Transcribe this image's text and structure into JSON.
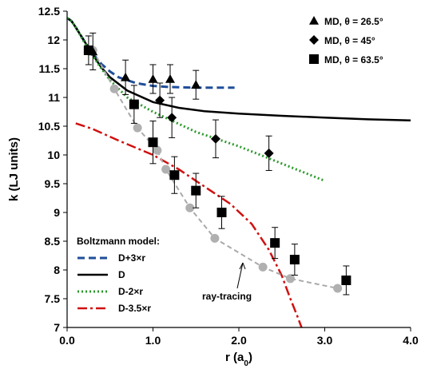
{
  "chart_data": {
    "type": "scatter",
    "xlabel": "r (a",
    "xlabel_sub": "0",
    "xlabel_end": ")",
    "ylabel": "k (LJ units)",
    "xlim": [
      0.0,
      4.0
    ],
    "ylim": [
      7,
      12.5
    ],
    "x_ticks": [
      "0.0",
      "1.0",
      "2.0",
      "3.0",
      "4.0"
    ],
    "y_ticks": [
      "7",
      "7.5",
      "8",
      "8.5",
      "9",
      "9.5",
      "10",
      "10.5",
      "11",
      "11.5",
      "12",
      "12.5"
    ],
    "x_tick_values": [
      0,
      1,
      2,
      3,
      4
    ],
    "y_tick_values": [
      7,
      7.5,
      8,
      8.5,
      9,
      9.5,
      10,
      10.5,
      11,
      11.5,
      12,
      12.5
    ],
    "legend_top": [
      {
        "label": "MD, θ = 26.5°",
        "marker": "triangle"
      },
      {
        "label": "MD, θ = 45°",
        "marker": "diamond"
      },
      {
        "label": "MD, θ = 63.5°",
        "marker": "square"
      }
    ],
    "legend_bottom": {
      "title": "Boltzmann model:",
      "items": [
        {
          "label": "D+3×r",
          "color": "#1f4e9a",
          "dash": "9,5",
          "width": 3
        },
        {
          "label": "D",
          "color": "#000000",
          "dash": "",
          "width": 2.5
        },
        {
          "label": "D-2×r",
          "color": "#2e9a2e",
          "dash": "2,3",
          "width": 3
        },
        {
          "label": "D-3.5×r",
          "color": "#d01010",
          "dash": "12,4,3,4",
          "width": 2.5
        }
      ]
    },
    "annotation": "ray-tracing",
    "colors": {
      "ray_tracing": "#aaaaaa",
      "ray_tracing_marker": "#b0b0b0"
    },
    "lines": [
      {
        "name": "D+3×r",
        "points": [
          [
            0,
            12.38
          ],
          [
            0.05,
            12.33
          ],
          [
            0.1,
            12.22
          ],
          [
            0.2,
            11.98
          ],
          [
            0.3,
            11.76
          ],
          [
            0.4,
            11.58
          ],
          [
            0.5,
            11.45
          ],
          [
            0.6,
            11.35
          ],
          [
            0.8,
            11.25
          ],
          [
            1.0,
            11.2
          ],
          [
            1.2,
            11.18
          ],
          [
            1.5,
            11.17
          ],
          [
            1.8,
            11.17
          ],
          [
            1.95,
            11.17
          ]
        ]
      },
      {
        "name": "D",
        "points": [
          [
            0,
            12.38
          ],
          [
            0.05,
            12.33
          ],
          [
            0.1,
            12.22
          ],
          [
            0.2,
            11.98
          ],
          [
            0.3,
            11.74
          ],
          [
            0.4,
            11.52
          ],
          [
            0.5,
            11.35
          ],
          [
            0.7,
            11.12
          ],
          [
            1.0,
            10.92
          ],
          [
            1.3,
            10.82
          ],
          [
            1.6,
            10.76
          ],
          [
            2.0,
            10.72
          ],
          [
            2.5,
            10.68
          ],
          [
            3.0,
            10.65
          ],
          [
            3.5,
            10.62
          ],
          [
            4.0,
            10.6
          ]
        ]
      },
      {
        "name": "D-2×r",
        "points": [
          [
            0,
            12.38
          ],
          [
            0.05,
            12.33
          ],
          [
            0.1,
            12.22
          ],
          [
            0.2,
            11.96
          ],
          [
            0.3,
            11.72
          ],
          [
            0.4,
            11.5
          ],
          [
            0.5,
            11.3
          ],
          [
            0.7,
            11.0
          ],
          [
            1.0,
            10.75
          ],
          [
            1.5,
            10.4
          ],
          [
            2.0,
            10.15
          ],
          [
            2.5,
            9.85
          ],
          [
            3.0,
            9.55
          ]
        ]
      },
      {
        "name": "D-3.5×r",
        "points": [
          [
            0.1,
            10.55
          ],
          [
            0.3,
            10.45
          ],
          [
            0.6,
            10.25
          ],
          [
            1.0,
            10.0
          ],
          [
            1.3,
            9.75
          ],
          [
            1.6,
            9.45
          ],
          [
            1.9,
            9.15
          ],
          [
            2.15,
            8.8
          ],
          [
            2.35,
            8.35
          ],
          [
            2.5,
            7.9
          ],
          [
            2.6,
            7.5
          ],
          [
            2.68,
            7.2
          ],
          [
            2.73,
            7.0
          ]
        ]
      }
    ],
    "ray_tracing_points": [
      [
        0.3,
        11.82
      ],
      [
        0.55,
        11.15
      ],
      [
        0.82,
        10.47
      ],
      [
        1.05,
        10.08
      ],
      [
        1.15,
        9.75
      ],
      [
        1.43,
        9.08
      ],
      [
        1.72,
        8.55
      ],
      [
        2.28,
        8.05
      ],
      [
        2.6,
        7.85
      ],
      [
        3.15,
        7.68
      ]
    ],
    "series": [
      {
        "name": "MD, θ = 26.5°",
        "marker": "triangle",
        "points": [
          [
            0.3,
            11.8,
            0.32
          ],
          [
            0.68,
            11.35,
            0.3
          ],
          [
            1.0,
            11.32,
            0.25
          ],
          [
            1.2,
            11.32,
            0.25
          ],
          [
            1.5,
            11.22,
            0.25
          ]
        ]
      },
      {
        "name": "MD, θ = 45°",
        "marker": "diamond",
        "points": [
          [
            1.08,
            10.95,
            0.3
          ],
          [
            1.22,
            10.65,
            0.35
          ],
          [
            1.73,
            10.28,
            0.33
          ],
          [
            2.35,
            10.03,
            0.3
          ]
        ]
      },
      {
        "name": "MD, θ = 63.5°",
        "marker": "square",
        "points": [
          [
            0.25,
            11.82,
            0.25
          ],
          [
            0.78,
            10.88,
            0.33
          ],
          [
            1.0,
            10.22,
            0.37
          ],
          [
            1.25,
            9.65,
            0.32
          ],
          [
            1.5,
            9.38,
            0.3
          ],
          [
            1.8,
            9.0,
            0.28
          ],
          [
            2.42,
            8.47,
            0.27
          ],
          [
            2.65,
            8.18,
            0.27
          ],
          [
            3.25,
            7.82,
            0.25
          ]
        ]
      }
    ]
  }
}
